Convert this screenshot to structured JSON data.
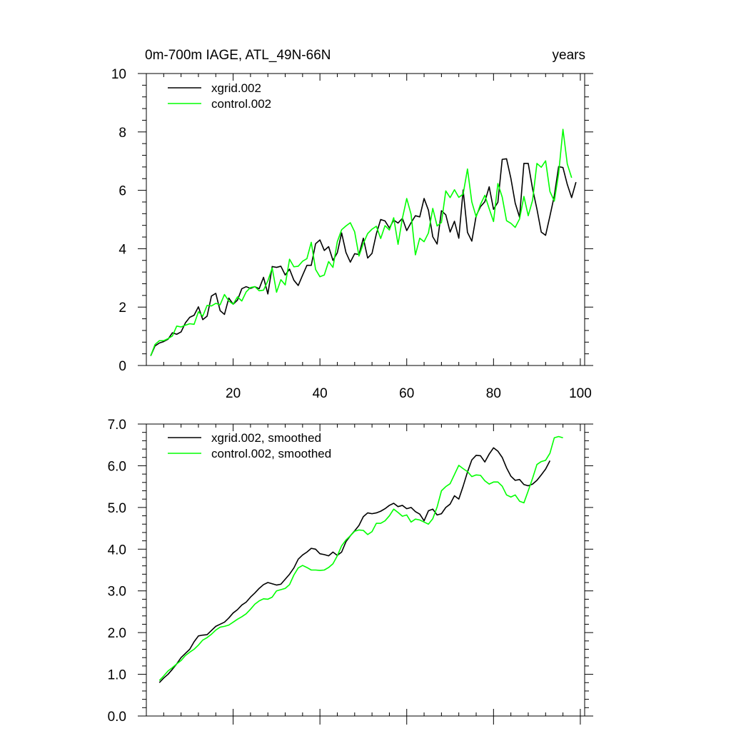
{
  "chart_data": [
    {
      "type": "line",
      "title_left": "0m-700m IAGE, ATL_49N-66N",
      "title_right": "years",
      "xlabel": "",
      "ylabel": "",
      "xlim": [
        0,
        101
      ],
      "ylim": [
        0,
        10
      ],
      "x_ticks": [
        20,
        40,
        60,
        80,
        100
      ],
      "x_tick_labels": [
        "20",
        "40",
        "60",
        "80",
        "100"
      ],
      "y_ticks": [
        0,
        2,
        4,
        6,
        8,
        10
      ],
      "y_tick_labels": [
        "0",
        "2",
        "4",
        "6",
        "8",
        "10"
      ],
      "legend_position": "top-left",
      "series": [
        {
          "name": "xgrid.002",
          "color": "#000000",
          "x_start": 1,
          "values": [
            0.33,
            0.67,
            0.77,
            0.82,
            0.9,
            1.12,
            1.07,
            1.15,
            1.46,
            1.65,
            1.72,
            2.01,
            1.57,
            1.69,
            2.38,
            2.47,
            1.88,
            1.75,
            2.31,
            2.1,
            2.24,
            2.63,
            2.7,
            2.64,
            2.7,
            2.63,
            3.02,
            2.45,
            3.39,
            3.36,
            3.4,
            3.1,
            3.3,
            2.92,
            2.74,
            3.09,
            3.43,
            3.43,
            4.17,
            4.3,
            3.94,
            4.07,
            3.6,
            3.86,
            4.54,
            3.87,
            3.54,
            3.83,
            3.8,
            4.36,
            3.68,
            3.84,
            4.51,
            5.0,
            4.95,
            4.71,
            4.98,
            4.88,
            5.04,
            4.62,
            4.89,
            5.13,
            5.09,
            5.72,
            5.32,
            4.41,
            4.16,
            5.3,
            5.16,
            4.57,
            4.94,
            4.36,
            6.01,
            4.56,
            4.26,
            5.13,
            5.44,
            5.61,
            6.12,
            5.35,
            5.59,
            7.06,
            7.08,
            6.41,
            5.56,
            5.08,
            6.92,
            6.92,
            6.05,
            5.36,
            4.57,
            4.46,
            5.12,
            5.81,
            6.81,
            6.78,
            6.2,
            5.75,
            6.28
          ]
        },
        {
          "name": "control.002",
          "color": "#00ff00",
          "x_start": 1,
          "values": [
            0.33,
            0.72,
            0.85,
            0.85,
            0.92,
            1.01,
            1.35,
            1.32,
            1.38,
            1.43,
            1.41,
            1.84,
            1.69,
            2.06,
            2.04,
            2.13,
            2.08,
            2.43,
            2.21,
            2.1,
            2.35,
            2.21,
            2.52,
            2.67,
            2.7,
            2.56,
            2.58,
            2.9,
            3.34,
            2.51,
            2.94,
            2.76,
            3.64,
            3.38,
            3.4,
            3.57,
            3.66,
            4.22,
            3.29,
            3.04,
            3.1,
            3.56,
            3.36,
            4.24,
            4.65,
            4.78,
            4.89,
            4.58,
            3.75,
            4.18,
            4.52,
            4.67,
            4.77,
            4.35,
            4.79,
            4.64,
            5.06,
            4.15,
            5.04,
            5.72,
            5.18,
            3.79,
            4.36,
            4.24,
            4.54,
            5.38,
            4.78,
            4.9,
            5.98,
            5.75,
            6.02,
            5.76,
            5.87,
            6.73,
            5.6,
            5.09,
            5.52,
            5.83,
            5.37,
            4.93,
            6.23,
            5.77,
            4.96,
            4.87,
            4.73,
            5.02,
            5.79,
            5.13,
            5.66,
            6.92,
            6.79,
            7.01,
            5.96,
            5.63,
            6.57,
            8.09,
            6.9,
            6.43
          ]
        }
      ]
    },
    {
      "type": "line",
      "xlabel": "",
      "ylabel": "",
      "xlim": [
        0,
        101
      ],
      "ylim": [
        0.0,
        7.0
      ],
      "x_ticks": [
        20,
        40,
        60,
        80,
        100
      ],
      "x_tick_labels": [],
      "y_ticks": [
        0.0,
        1.0,
        2.0,
        3.0,
        4.0,
        5.0,
        6.0,
        7.0
      ],
      "y_tick_labels": [
        "0.0",
        "1.0",
        "2.0",
        "3.0",
        "4.0",
        "5.0",
        "6.0",
        "7.0"
      ],
      "legend_position": "top-left",
      "series": [
        {
          "name": "xgrid.002, smoothed",
          "color": "#000000",
          "x_start": 3,
          "values": [
            0.8,
            0.91,
            1.0,
            1.12,
            1.25,
            1.4,
            1.5,
            1.6,
            1.78,
            1.92,
            1.94,
            1.95,
            2.05,
            2.15,
            2.2,
            2.25,
            2.35,
            2.47,
            2.55,
            2.66,
            2.73,
            2.85,
            2.95,
            3.06,
            3.15,
            3.2,
            3.17,
            3.14,
            3.16,
            3.28,
            3.4,
            3.55,
            3.76,
            3.86,
            3.93,
            4.02,
            4.0,
            3.89,
            3.87,
            3.84,
            3.93,
            3.85,
            3.93,
            4.18,
            4.32,
            4.44,
            4.57,
            4.78,
            4.87,
            4.85,
            4.87,
            4.91,
            4.97,
            5.05,
            5.1,
            5.02,
            5.05,
            4.97,
            5.0,
            4.9,
            4.84,
            4.68,
            4.92,
            4.96,
            4.82,
            4.85,
            5.0,
            5.08,
            5.28,
            5.2,
            5.51,
            5.85,
            6.14,
            6.25,
            6.24,
            6.09,
            6.28,
            6.43,
            6.35,
            6.2,
            5.95,
            5.75,
            5.65,
            5.67,
            5.55,
            5.52,
            5.56,
            5.65,
            5.78,
            5.92,
            6.12
          ]
        },
        {
          "name": "control.002, smoothed",
          "color": "#00ff00",
          "x_start": 3,
          "values": [
            0.85,
            0.96,
            1.08,
            1.16,
            1.25,
            1.33,
            1.45,
            1.53,
            1.6,
            1.7,
            1.82,
            1.88,
            1.96,
            2.06,
            2.13,
            2.15,
            2.18,
            2.25,
            2.32,
            2.38,
            2.45,
            2.56,
            2.68,
            2.76,
            2.81,
            2.8,
            2.85,
            3.0,
            3.03,
            3.06,
            3.15,
            3.38,
            3.55,
            3.61,
            3.56,
            3.5,
            3.5,
            3.49,
            3.5,
            3.56,
            3.65,
            3.84,
            4.08,
            4.22,
            4.32,
            4.43,
            4.46,
            4.45,
            4.35,
            4.42,
            4.62,
            4.62,
            4.68,
            4.8,
            4.96,
            4.88,
            4.79,
            4.82,
            4.65,
            4.72,
            4.7,
            4.65,
            4.6,
            4.73,
            5.01,
            5.4,
            5.5,
            5.57,
            5.79,
            6.01,
            5.93,
            5.86,
            5.74,
            5.78,
            5.77,
            5.64,
            5.56,
            5.61,
            5.61,
            5.51,
            5.3,
            5.25,
            5.3,
            5.15,
            5.11,
            5.4,
            5.7,
            6.03,
            6.1,
            6.13,
            6.3,
            6.67,
            6.7,
            6.67
          ]
        }
      ]
    }
  ]
}
